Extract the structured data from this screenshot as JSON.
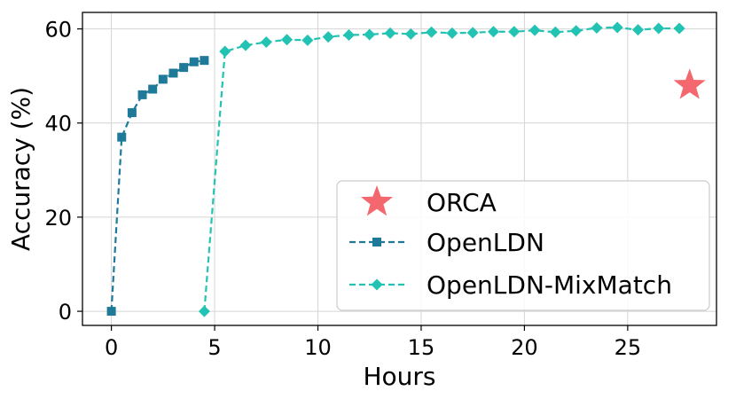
{
  "chart_data": {
    "type": "line",
    "title": "",
    "xlabel": "Hours",
    "ylabel": "Accuracy (%)",
    "xlim": [
      -1.4,
      29.3
    ],
    "ylim": [
      -3,
      63.5
    ],
    "xticks": [
      0,
      5,
      10,
      15,
      20,
      25
    ],
    "yticks": [
      0,
      20,
      40,
      60
    ],
    "grid": true,
    "legend_position": "lower-right",
    "series": [
      {
        "name": "ORCA",
        "color": "#f4676f",
        "marker": "star",
        "linestyle": "none",
        "points": [
          [
            28,
            48
          ]
        ]
      },
      {
        "name": "OpenLDN",
        "color": "#1f7a99",
        "marker": "square",
        "linestyle": "dashed",
        "points": [
          [
            0,
            0
          ],
          [
            0.5,
            37
          ],
          [
            1,
            42.2
          ],
          [
            1.5,
            46
          ],
          [
            2,
            47.2
          ],
          [
            2.5,
            49.3
          ],
          [
            3,
            50.6
          ],
          [
            3.5,
            51.8
          ],
          [
            4,
            53
          ],
          [
            4.5,
            53.3
          ]
        ]
      },
      {
        "name": "OpenLDN-MixMatch",
        "color": "#22c3b2",
        "marker": "diamond",
        "linestyle": "dashed",
        "points": [
          [
            4.5,
            0
          ],
          [
            5.5,
            55.2
          ],
          [
            6.5,
            56.5
          ],
          [
            7.5,
            57.2
          ],
          [
            8.5,
            57.7
          ],
          [
            9.5,
            57.6
          ],
          [
            10.5,
            58.3
          ],
          [
            11.5,
            58.7
          ],
          [
            12.5,
            58.8
          ],
          [
            13.5,
            59.1
          ],
          [
            14.5,
            58.9
          ],
          [
            15.5,
            59.3
          ],
          [
            16.5,
            59.1
          ],
          [
            17.5,
            59.2
          ],
          [
            18.5,
            59.4
          ],
          [
            19.5,
            59.4
          ],
          [
            20.5,
            59.7
          ],
          [
            21.5,
            59.3
          ],
          [
            22.5,
            59.6
          ],
          [
            23.5,
            60.2
          ],
          [
            24.5,
            60.3
          ],
          [
            25.5,
            59.8
          ],
          [
            26.5,
            60.1
          ],
          [
            27.5,
            60.1
          ]
        ]
      }
    ]
  }
}
